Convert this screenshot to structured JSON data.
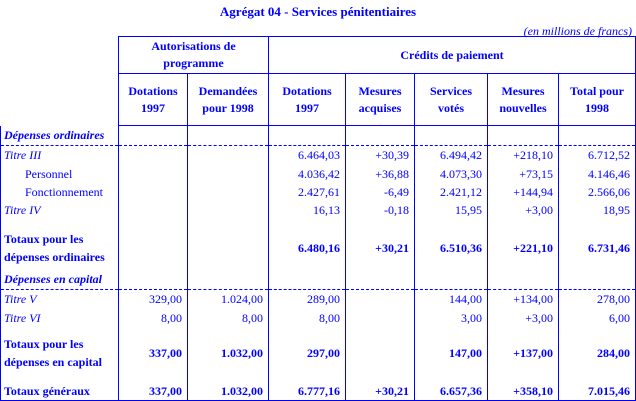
{
  "title": "Agrégat 04 - Services pénitentiaires",
  "unit": "(en millions de francs)",
  "headers": {
    "group1": "Autorisations de programme",
    "group2": "Crédits de paiement",
    "cols": [
      "Dotations 1997",
      "Demandées pour 1998",
      "Dotations 1997",
      "Mesures acquises",
      "Services votés",
      "Mesures nouvelles",
      "Total pour 1998"
    ]
  },
  "rows": [
    {
      "type": "section",
      "label": "Dépenses ordinaires",
      "values": [
        "",
        "",
        "",
        "",
        "",
        "",
        ""
      ]
    },
    {
      "type": "italic",
      "label": "Titre III",
      "values": [
        "",
        "",
        "6.464,03",
        "+30,39",
        "6.494,42",
        "+218,10",
        "6.712,52"
      ]
    },
    {
      "type": "indent",
      "label": "Personnel",
      "values": [
        "",
        "",
        "4.036,42",
        "+36,88",
        "4.073,30",
        "+73,15",
        "4.146,46"
      ]
    },
    {
      "type": "indent",
      "label": "Fonctionnement",
      "values": [
        "",
        "",
        "2.427,61",
        "-6,49",
        "2.421,12",
        "+144,94",
        "2.566,06"
      ]
    },
    {
      "type": "italic",
      "label": "Titre IV",
      "values": [
        "",
        "",
        "16,13",
        "-0,18",
        "15,95",
        "+3,00",
        "18,95"
      ]
    },
    {
      "type": "total",
      "label": "Totaux pour les dépenses ordinaires",
      "values": [
        "",
        "",
        "6.480,16",
        "+30,21",
        "6.510,36",
        "+221,10",
        "6.731,46"
      ]
    },
    {
      "type": "section",
      "label": "Dépenses en capital",
      "values": [
        "",
        "",
        "",
        "",
        "",
        "",
        ""
      ]
    },
    {
      "type": "italic",
      "label": "Titre V",
      "values": [
        "329,00",
        "1.024,00",
        "289,00",
        "",
        "144,00",
        "+134,00",
        "278,00"
      ]
    },
    {
      "type": "italic",
      "label": "Titre VI",
      "values": [
        "8,00",
        "8,00",
        "8,00",
        "",
        "3,00",
        "+3,00",
        "6,00"
      ]
    },
    {
      "type": "total",
      "label": "Totaux pour les dépenses en capital",
      "values": [
        "337,00",
        "1.032,00",
        "297,00",
        "",
        "147,00",
        "+137,00",
        "284,00"
      ]
    },
    {
      "type": "last",
      "label": "Totaux généraux",
      "values": [
        "337,00",
        "1.032,00",
        "6.777,16",
        "+30,21",
        "6.657,36",
        "+358,10",
        "7.015,46"
      ]
    }
  ]
}
